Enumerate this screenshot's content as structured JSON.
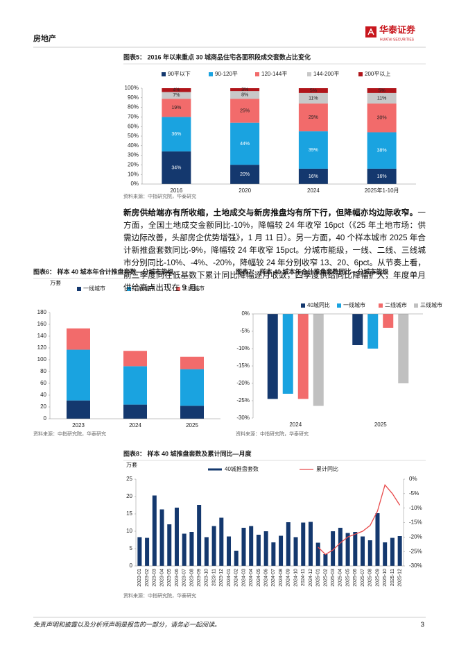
{
  "header": {
    "section": "房地产",
    "logo": "华泰证券",
    "logo_en": "HUATAI SECURITIES"
  },
  "paragraph": {
    "bold": "新房供给端亦有所收缩，土地成交与新房推盘均有所下行，但降幅亦均边际收窄。",
    "text": "一方面，全国土地成交金额同比-10%，降幅较 24 年收窄 16pct（《25 年土地市场：供需边际改善，头部房企优势增强》，1 月 11 日）。另一方面，40 个样本城市 2025 年合计新推盘套数同比-9%，降幅较 24 年收窄 15pct。分城市能级，一线、二线、三线城市分别同比-10%、-4%、-20%，降幅较 24 年分别收窄 13、20、6pct。从节奏上看，前三季度同在低基数下累计同比降幅逐月收敛，四季度供给同比降幅扩大，年度单月供给高点出现在 9 月。"
  },
  "chart_data": [
    {
      "type": "bar",
      "stacked": true,
      "title": "图表5： 2016 年以来重点 30 城商品住宅各面积段成交套数占比变化",
      "categories": [
        "2016",
        "2020",
        "2024",
        "2025年1-10月"
      ],
      "series": [
        {
          "name": "90平以下",
          "color": "#14386e",
          "values": [
            34,
            20,
            16,
            16
          ],
          "value_labels": [
            "34%",
            "20%",
            "16%",
            "16%"
          ]
        },
        {
          "name": "90-120平",
          "color": "#1aa3e0",
          "values": [
            36,
            44,
            39,
            38
          ],
          "value_labels": [
            "36%",
            "44%",
            "39%",
            "38%"
          ]
        },
        {
          "name": "120-144平",
          "color": "#f26b6b",
          "values": [
            19,
            25,
            29,
            30
          ],
          "value_labels": [
            "19%",
            "25%",
            "29%",
            "30%"
          ]
        },
        {
          "name": "144-200平",
          "color": "#c8c8c8",
          "values": [
            7,
            8,
            11,
            11
          ],
          "value_labels": [
            "7%",
            "8%",
            "11%",
            "11%"
          ]
        },
        {
          "name": "200平以上",
          "color": "#b0151a",
          "values": [
            4,
            3,
            5,
            5
          ],
          "value_labels": [
            "4%",
            "3%",
            "5%",
            "5%"
          ]
        }
      ],
      "ylim": [
        0,
        100
      ],
      "yticks": [
        {
          "value": 0,
          "label": "0%"
        },
        {
          "value": 10,
          "label": "10%"
        },
        {
          "value": 20,
          "label": "20%"
        },
        {
          "value": 30,
          "label": "30%"
        },
        {
          "value": 40,
          "label": "40%"
        },
        {
          "value": 50,
          "label": "50%"
        },
        {
          "value": 60,
          "label": "60%"
        },
        {
          "value": 70,
          "label": "70%"
        },
        {
          "value": 80,
          "label": "80%"
        },
        {
          "value": 90,
          "label": "90%"
        },
        {
          "value": 100,
          "label": "100%"
        }
      ],
      "source": "资料来源：中指研究院，华泰研究"
    },
    {
      "type": "bar",
      "stacked": true,
      "title": "图表6： 样本 40 城本年合计推盘套数—分城市能级",
      "y_label": "万套",
      "categories": [
        "2023",
        "2024",
        "2025"
      ],
      "series": [
        {
          "name": "一线城市",
          "color": "#14386e",
          "values": [
            31,
            24,
            22
          ]
        },
        {
          "name": "二线城市",
          "color": "#1aa3e0",
          "values": [
            86,
            65,
            62
          ]
        },
        {
          "name": "三线城市",
          "color": "#f26b6b",
          "values": [
            36,
            26,
            21
          ]
        }
      ],
      "ylim": [
        0,
        180
      ],
      "yticks": [
        0,
        20,
        40,
        60,
        80,
        100,
        120,
        140,
        160,
        180
      ],
      "source": "资料来源：中指研究院，华泰研究"
    },
    {
      "type": "bar",
      "stacked": false,
      "title": "图表7： 样本 40 城本年合计推盘套数同比—分城市能级",
      "categories": [
        "2024",
        "2025"
      ],
      "series": [
        {
          "name": "40城同比",
          "color": "#14386e",
          "values": [
            -24.5,
            -9
          ]
        },
        {
          "name": "一线城市",
          "color": "#1aa3e0",
          "values": [
            -23,
            -10
          ]
        },
        {
          "name": "二线城市",
          "color": "#f26b6b",
          "values": [
            -24.5,
            -4
          ]
        },
        {
          "name": "三线城市",
          "color": "#c0c0c0",
          "values": [
            -26.5,
            -20
          ]
        }
      ],
      "ylim": [
        -30,
        0
      ],
      "yticks": [
        {
          "value": 0,
          "label": "0%"
        },
        {
          "value": -5,
          "label": "-5%"
        },
        {
          "value": -10,
          "label": "-10%"
        },
        {
          "value": -15,
          "label": "-15%"
        },
        {
          "value": -20,
          "label": "-20%"
        },
        {
          "value": -25,
          "label": "-25%"
        },
        {
          "value": -30,
          "label": "-30%"
        }
      ],
      "source": "资料来源：中指研究院，华泰研究"
    },
    {
      "type": "bar",
      "stacked": false,
      "title": "图表8： 样本 40 城推盘套数及累计同比—月度",
      "y_label": "万套",
      "categories": [
        "2023-01",
        "2023-02",
        "2023-03",
        "2023-04",
        "2023-05",
        "2023-06",
        "2023-07",
        "2023-08",
        "2023-09",
        "2023-10",
        "2023-11",
        "2023-12",
        "2024-01",
        "2024-02",
        "2024-03",
        "2024-04",
        "2024-05",
        "2024-06",
        "2024-07",
        "2024-08",
        "2024-09",
        "2024-10",
        "2024-11",
        "2024-12",
        "2025-01",
        "2025-02",
        "2025-03",
        "2025-04",
        "2025-05",
        "2025-06",
        "2025-07",
        "2025-08",
        "2025-09",
        "2025-10",
        "2025-11",
        "2025-12"
      ],
      "series": [
        {
          "name": "40城推盘套数",
          "color": "#14386e",
          "values": [
            8.3,
            8.1,
            20.3,
            16.3,
            12,
            16.8,
            9.3,
            9.8,
            17.6,
            8.3,
            11.5,
            13.9,
            8.5,
            4.4,
            11,
            11.5,
            9,
            10,
            6.8,
            8.7,
            12.6,
            8.3,
            12.5,
            12.7,
            6.7,
            3.4,
            10,
            11,
            9.5,
            9.8,
            8.5,
            7.4,
            15.2,
            6.8,
            8.1,
            8.6
          ]
        },
        {
          "name": "累计同比",
          "color": "#e8494a",
          "type": "line",
          "axis": "y2",
          "values": [
            null,
            null,
            null,
            null,
            null,
            null,
            null,
            null,
            null,
            null,
            null,
            null,
            null,
            null,
            null,
            null,
            null,
            null,
            null,
            null,
            null,
            null,
            null,
            null,
            -23.5,
            -26,
            -24.5,
            -22,
            -20,
            -19,
            -18,
            -16,
            -11,
            -2,
            -5,
            -9
          ]
        }
      ],
      "ylim": [
        0,
        25
      ],
      "yticks": [
        0,
        5,
        10,
        15,
        20,
        25
      ],
      "y2lim": [
        -30,
        0
      ],
      "y2ticks": [
        {
          "value": 0,
          "label": "0%"
        },
        {
          "value": -5,
          "label": "-5%"
        },
        {
          "value": -10,
          "label": "-10%"
        },
        {
          "value": -15,
          "label": "-15%"
        },
        {
          "value": -20,
          "label": "-20%"
        },
        {
          "value": -25,
          "label": "-25%"
        },
        {
          "value": -30,
          "label": "-30%"
        }
      ],
      "source": "资料来源：中指研究院，华泰研究"
    }
  ],
  "footer": {
    "disclaimer": "免责声明和披露以及分析师声明是报告的一部分，请务必一起阅读。",
    "page": 3
  }
}
